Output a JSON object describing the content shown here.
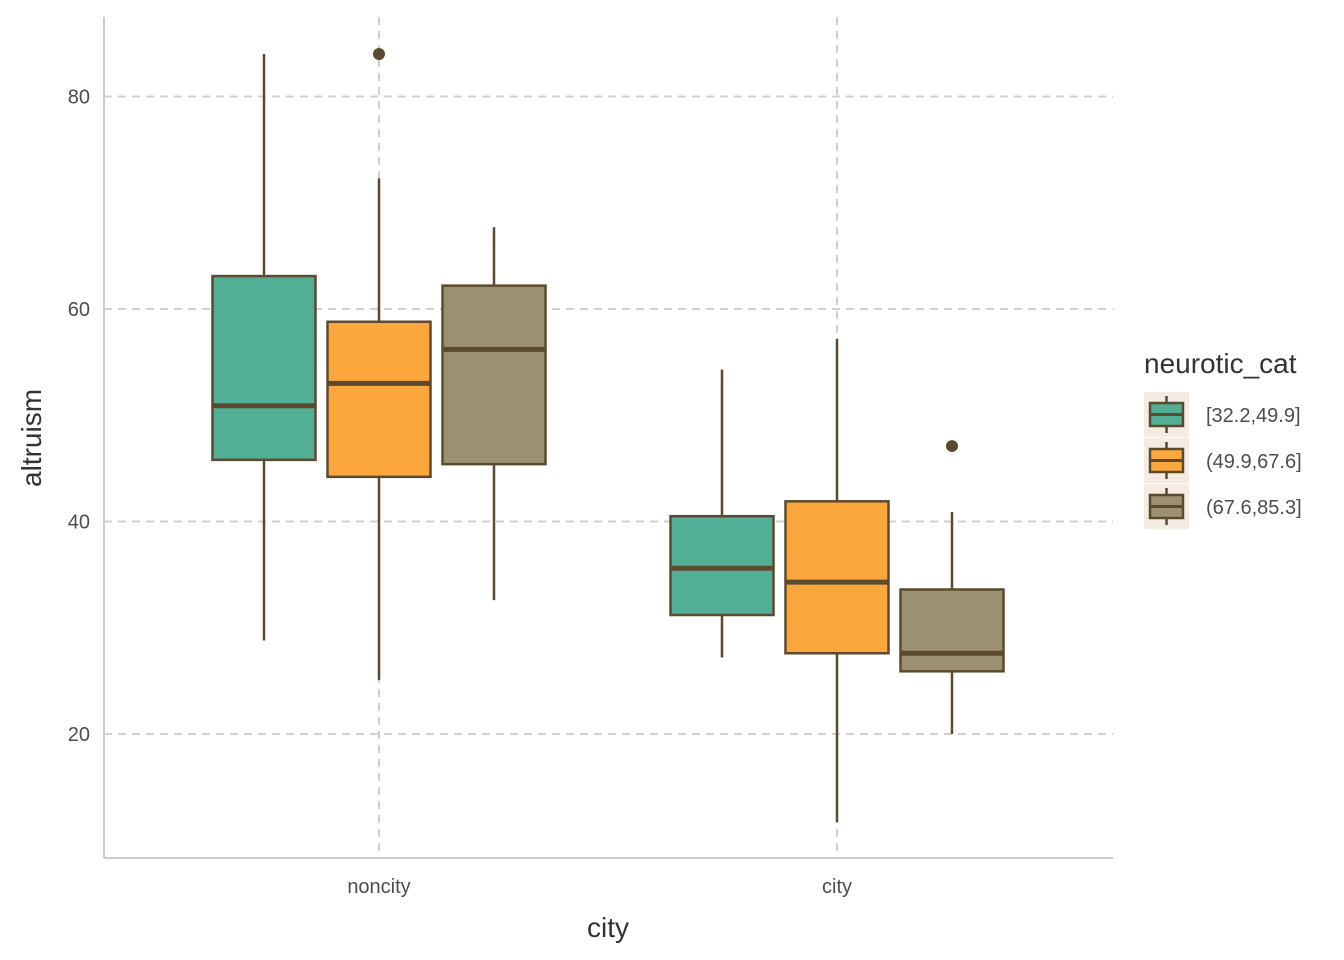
{
  "chart_data": {
    "type": "boxplot",
    "title": "",
    "xlabel": "city",
    "ylabel": "altruism",
    "categories": [
      "noncity",
      "city"
    ],
    "ylim": [
      8.5,
      87.5
    ],
    "yticks": [
      20,
      40,
      60,
      80
    ],
    "grid": true,
    "legend": {
      "title": "neurotic_cat",
      "placement": "right"
    },
    "box_outline_color": "#5c4a2e",
    "series": [
      {
        "name": "[32.2,49.9]",
        "color": "#52ae94",
        "boxes": [
          {
            "category": "noncity",
            "whisker_low": 28.8,
            "q1": 45.8,
            "median": 50.9,
            "q3": 63.1,
            "whisker_high": 84.0,
            "outliers": []
          },
          {
            "category": "city",
            "whisker_low": 27.2,
            "q1": 31.2,
            "median": 35.6,
            "q3": 40.5,
            "whisker_high": 54.3,
            "outliers": []
          }
        ]
      },
      {
        "name": "(49.9,67.6]",
        "color": "#fca73c",
        "boxes": [
          {
            "category": "noncity",
            "whisker_low": 25.1,
            "q1": 44.2,
            "median": 53.0,
            "q3": 58.8,
            "whisker_high": 72.3,
            "outliers": [
              84.0
            ]
          },
          {
            "category": "city",
            "whisker_low": 11.7,
            "q1": 27.6,
            "median": 34.3,
            "q3": 41.9,
            "whisker_high": 57.2,
            "outliers": []
          }
        ]
      },
      {
        "name": "(67.6,85.3]",
        "color": "#9b9171",
        "boxes": [
          {
            "category": "noncity",
            "whisker_low": 32.6,
            "q1": 45.4,
            "median": 56.2,
            "q3": 62.2,
            "whisker_high": 67.7,
            "outliers": []
          },
          {
            "category": "city",
            "whisker_low": 20.0,
            "q1": 25.9,
            "median": 27.6,
            "q3": 33.6,
            "whisker_high": 40.9,
            "outliers": [
              47.1
            ]
          }
        ]
      }
    ]
  }
}
